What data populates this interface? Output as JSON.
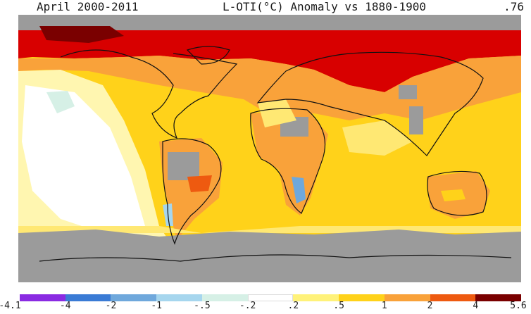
{
  "header": {
    "left": "April 2000-2011",
    "center": "L-OTI(°C) Anomaly vs 1880-1900",
    "right": ".76"
  },
  "legend": {
    "labels": [
      "-4.1",
      "-4",
      "-2",
      "-1",
      "-.5",
      "-.2",
      ".2",
      ".5",
      "1",
      "2",
      "4",
      "5.6"
    ],
    "colors": [
      "#8a2be2",
      "#3a7bd5",
      "#6fa8dc",
      "#a6d6ee",
      "#d6f0e6",
      "#ffffff",
      "#fff27a",
      "#ffd21a",
      "#f9a23a",
      "#ee5a10",
      "#d80000",
      "#7a0000"
    ]
  },
  "map": {
    "projection": "equirectangular",
    "missing_data_color": "#9b9b9b"
  }
}
